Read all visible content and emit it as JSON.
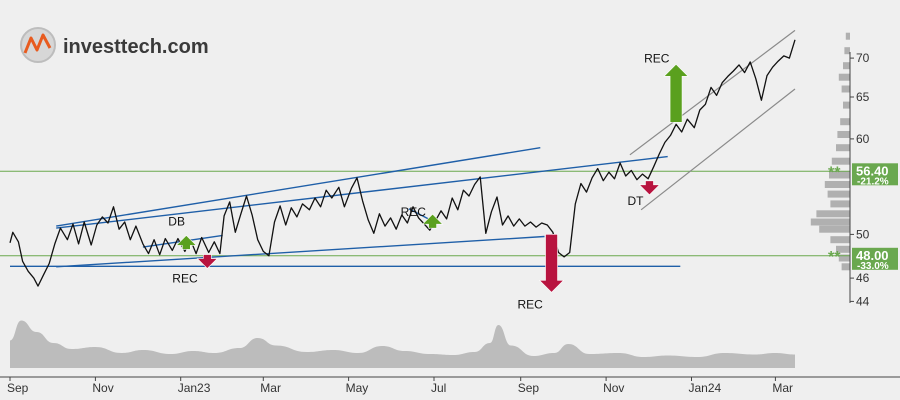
{
  "brand": {
    "name": "investtech.com"
  },
  "colors": {
    "background": "#efefef",
    "price_line": "#111111",
    "trend_line": "#1f5fa8",
    "channel_line": "#8a8a8a",
    "volume_fill": "#bcbcbc",
    "buy_arrow": "#5aa01e",
    "sell_arrow": "#b8133f",
    "support_green": "#6aa84f",
    "level_tag_bg": "#6aa84f"
  },
  "chart_data": {
    "type": "line",
    "y_axis": {
      "scale": "log",
      "range": [
        41.5,
        75
      ],
      "ticks": [
        44,
        46,
        50,
        60,
        65,
        70
      ]
    },
    "x_axis": {
      "range": [
        "2022-09-01",
        "2024-03-15"
      ],
      "ticks": [
        {
          "date": "2022-09-01",
          "label": "Sep"
        },
        {
          "date": "2022-11-01",
          "label": "Nov"
        },
        {
          "date": "2023-01-01",
          "label": "Jan23"
        },
        {
          "date": "2023-03-01",
          "label": "Mar"
        },
        {
          "date": "2023-05-01",
          "label": "May"
        },
        {
          "date": "2023-07-01",
          "label": "Jul"
        },
        {
          "date": "2023-09-01",
          "label": "Sep"
        },
        {
          "date": "2023-11-01",
          "label": "Nov"
        },
        {
          "date": "2024-01-01",
          "label": "Jan24"
        },
        {
          "date": "2024-03-01",
          "label": "Mar"
        }
      ]
    },
    "price": [
      [
        "2022-09-01",
        49.2
      ],
      [
        "2022-09-03",
        50.2
      ],
      [
        "2022-09-07",
        49.3
      ],
      [
        "2022-09-10",
        47.5
      ],
      [
        "2022-09-14",
        46.6
      ],
      [
        "2022-09-18",
        46.0
      ],
      [
        "2022-09-21",
        45.3
      ],
      [
        "2022-09-25",
        46.3
      ],
      [
        "2022-09-29",
        47.3
      ],
      [
        "2022-10-03",
        49.1
      ],
      [
        "2022-10-07",
        50.6
      ],
      [
        "2022-10-12",
        49.5
      ],
      [
        "2022-10-16",
        51.0
      ],
      [
        "2022-10-20",
        49.1
      ],
      [
        "2022-10-24",
        51.2
      ],
      [
        "2022-10-29",
        49.0
      ],
      [
        "2022-11-02",
        50.9
      ],
      [
        "2022-11-06",
        51.7
      ],
      [
        "2022-11-10",
        51.1
      ],
      [
        "2022-11-14",
        52.7
      ],
      [
        "2022-11-18",
        50.5
      ],
      [
        "2022-11-22",
        51.2
      ],
      [
        "2022-11-26",
        49.5
      ],
      [
        "2022-11-30",
        50.8
      ],
      [
        "2022-12-05",
        49.1
      ],
      [
        "2022-12-09",
        48.2
      ],
      [
        "2022-12-13",
        49.5
      ],
      [
        "2022-12-17",
        48.1
      ],
      [
        "2022-12-21",
        49.6
      ],
      [
        "2022-12-26",
        48.5
      ],
      [
        "2022-12-30",
        49.6
      ],
      [
        "2023-01-04",
        48.4
      ],
      [
        "2023-01-08",
        49.5
      ],
      [
        "2023-01-12",
        48.2
      ],
      [
        "2023-01-16",
        49.7
      ],
      [
        "2023-01-21",
        48.3
      ],
      [
        "2023-01-25",
        49.3
      ],
      [
        "2023-01-29",
        48.2
      ],
      [
        "2023-02-01",
        51.8
      ],
      [
        "2023-02-05",
        53.2
      ],
      [
        "2023-02-09",
        50.2
      ],
      [
        "2023-02-13",
        52.0
      ],
      [
        "2023-02-17",
        53.8
      ],
      [
        "2023-02-21",
        51.9
      ],
      [
        "2023-02-25",
        49.5
      ],
      [
        "2023-03-01",
        48.4
      ],
      [
        "2023-03-05",
        48.0
      ],
      [
        "2023-03-09",
        51.2
      ],
      [
        "2023-03-13",
        52.8
      ],
      [
        "2023-03-17",
        50.9
      ],
      [
        "2023-03-21",
        52.6
      ],
      [
        "2023-03-25",
        51.7
      ],
      [
        "2023-03-29",
        53.0
      ],
      [
        "2023-04-03",
        52.4
      ],
      [
        "2023-04-07",
        53.6
      ],
      [
        "2023-04-11",
        52.7
      ],
      [
        "2023-04-15",
        54.4
      ],
      [
        "2023-04-19",
        53.6
      ],
      [
        "2023-04-24",
        54.7
      ],
      [
        "2023-04-28",
        52.7
      ],
      [
        "2023-05-03",
        54.6
      ],
      [
        "2023-05-07",
        55.7
      ],
      [
        "2023-05-11",
        53.3
      ],
      [
        "2023-05-15",
        51.4
      ],
      [
        "2023-05-19",
        50.1
      ],
      [
        "2023-05-23",
        52.0
      ],
      [
        "2023-05-27",
        50.8
      ],
      [
        "2023-05-31",
        51.6
      ],
      [
        "2023-06-04",
        50.5
      ],
      [
        "2023-06-08",
        51.9
      ],
      [
        "2023-06-12",
        51.1
      ],
      [
        "2023-06-16",
        52.7
      ],
      [
        "2023-06-20",
        51.6
      ],
      [
        "2023-06-24",
        51.0
      ],
      [
        "2023-06-28",
        50.4
      ],
      [
        "2023-07-02",
        51.3
      ],
      [
        "2023-07-06",
        52.3
      ],
      [
        "2023-07-10",
        51.5
      ],
      [
        "2023-07-14",
        53.6
      ],
      [
        "2023-07-18",
        52.4
      ],
      [
        "2023-07-22",
        54.4
      ],
      [
        "2023-07-26",
        53.8
      ],
      [
        "2023-07-30",
        55.0
      ],
      [
        "2023-08-03",
        55.8
      ],
      [
        "2023-08-07",
        50.1
      ],
      [
        "2023-08-11",
        52.2
      ],
      [
        "2023-08-15",
        53.7
      ],
      [
        "2023-08-19",
        50.9
      ],
      [
        "2023-08-23",
        51.8
      ],
      [
        "2023-08-27",
        50.8
      ],
      [
        "2023-08-31",
        51.5
      ],
      [
        "2023-09-04",
        50.8
      ],
      [
        "2023-09-08",
        51.2
      ],
      [
        "2023-09-12",
        50.7
      ],
      [
        "2023-09-16",
        51.1
      ],
      [
        "2023-09-20",
        50.9
      ],
      [
        "2023-09-24",
        50.2
      ],
      [
        "2023-09-28",
        48.3
      ],
      [
        "2023-10-02",
        47.9
      ],
      [
        "2023-10-06",
        48.3
      ],
      [
        "2023-10-10",
        53.0
      ],
      [
        "2023-10-14",
        55.1
      ],
      [
        "2023-10-18",
        54.2
      ],
      [
        "2023-10-22",
        55.7
      ],
      [
        "2023-10-26",
        56.7
      ],
      [
        "2023-10-30",
        55.4
      ],
      [
        "2023-11-03",
        56.3
      ],
      [
        "2023-11-07",
        55.6
      ],
      [
        "2023-11-11",
        57.3
      ],
      [
        "2023-11-15",
        55.9
      ],
      [
        "2023-11-19",
        56.5
      ],
      [
        "2023-11-23",
        55.5
      ],
      [
        "2023-11-27",
        56.1
      ],
      [
        "2023-12-01",
        55.6
      ],
      [
        "2023-12-05",
        56.9
      ],
      [
        "2023-12-09",
        58.3
      ],
      [
        "2023-12-13",
        59.6
      ],
      [
        "2023-12-17",
        60.4
      ],
      [
        "2023-12-21",
        61.7
      ],
      [
        "2023-12-25",
        60.8
      ],
      [
        "2023-12-29",
        62.3
      ],
      [
        "2024-01-03",
        61.3
      ],
      [
        "2024-01-07",
        63.4
      ],
      [
        "2024-01-11",
        64.1
      ],
      [
        "2024-01-15",
        66.2
      ],
      [
        "2024-01-19",
        65.2
      ],
      [
        "2024-01-23",
        66.8
      ],
      [
        "2024-01-27",
        67.6
      ],
      [
        "2024-01-31",
        68.3
      ],
      [
        "2024-02-04",
        69.1
      ],
      [
        "2024-02-08",
        68.1
      ],
      [
        "2024-02-12",
        69.5
      ],
      [
        "2024-02-16",
        67.3
      ],
      [
        "2024-02-20",
        64.6
      ],
      [
        "2024-02-24",
        67.7
      ],
      [
        "2024-02-28",
        68.8
      ],
      [
        "2024-03-03",
        69.6
      ],
      [
        "2024-03-07",
        70.3
      ],
      [
        "2024-03-11",
        70.0
      ],
      [
        "2024-03-15",
        72.5
      ]
    ],
    "trend_lines": [
      {
        "kind": "trend",
        "from": [
          "2022-10-04",
          50.8
        ],
        "to": [
          "2023-09-15",
          59.0
        ]
      },
      {
        "kind": "trend",
        "from": [
          "2022-10-04",
          50.6
        ],
        "to": [
          "2023-12-15",
          58.0
        ]
      },
      {
        "kind": "trend",
        "from": [
          "2022-10-04",
          47.0
        ],
        "to": [
          "2023-09-18",
          49.8
        ]
      },
      {
        "kind": "trend",
        "from": [
          "2022-09-01",
          47.05
        ],
        "to": [
          "2023-12-24",
          47.05
        ]
      },
      {
        "kind": "trend",
        "from": [
          "2022-12-05",
          48.8
        ],
        "to": [
          "2023-01-31",
          49.9
        ]
      },
      {
        "kind": "trend",
        "from": [
          "2023-06-13",
          52.5
        ],
        "to": [
          "2023-07-04",
          51.0
        ]
      },
      {
        "kind": "channel",
        "from": [
          "2023-11-26",
          52.4
        ],
        "to": [
          "2024-03-15",
          66.0
        ]
      },
      {
        "kind": "channel",
        "from": [
          "2023-11-18",
          58.2
        ],
        "to": [
          "2024-03-15",
          73.8
        ]
      }
    ],
    "levels": [
      {
        "value": 56.4,
        "label": "56.40",
        "pct": "-21.2%"
      },
      {
        "value": 48.0,
        "label": "48.00",
        "pct": "-33.0%"
      }
    ],
    "signals": [
      {
        "label": "DB",
        "direction": "buy",
        "date": "2023-01-05"
      },
      {
        "label": "REC",
        "direction": "sell",
        "date": "2023-01-20"
      },
      {
        "label": "REC",
        "direction": "buy",
        "date": "2023-06-30"
      },
      {
        "label": "REC",
        "direction": "sell",
        "date": "2023-09-23"
      },
      {
        "label": "DT",
        "direction": "sell",
        "date": "2023-12-02"
      },
      {
        "label": "REC",
        "direction": "buy",
        "date": "2023-12-21"
      }
    ],
    "volume": [
      [
        "2022-09-01",
        0.55
      ],
      [
        "2022-09-09",
        0.95
      ],
      [
        "2022-09-20",
        0.72
      ],
      [
        "2022-10-02",
        0.5
      ],
      [
        "2022-10-15",
        0.38
      ],
      [
        "2022-11-01",
        0.42
      ],
      [
        "2022-11-20",
        0.3
      ],
      [
        "2022-12-05",
        0.36
      ],
      [
        "2022-12-25",
        0.28
      ],
      [
        "2023-01-10",
        0.34
      ],
      [
        "2023-01-25",
        0.3
      ],
      [
        "2023-02-12",
        0.4
      ],
      [
        "2023-02-25",
        0.6
      ],
      [
        "2023-03-10",
        0.45
      ],
      [
        "2023-04-01",
        0.32
      ],
      [
        "2023-04-20",
        0.36
      ],
      [
        "2023-05-08",
        0.3
      ],
      [
        "2023-05-25",
        0.44
      ],
      [
        "2023-06-10",
        0.34
      ],
      [
        "2023-06-28",
        0.28
      ],
      [
        "2023-07-15",
        0.26
      ],
      [
        "2023-07-30",
        0.32
      ],
      [
        "2023-08-10",
        0.5
      ],
      [
        "2023-08-16",
        0.86
      ],
      [
        "2023-08-25",
        0.45
      ],
      [
        "2023-09-10",
        0.24
      ],
      [
        "2023-09-25",
        0.3
      ],
      [
        "2023-10-05",
        0.48
      ],
      [
        "2023-10-20",
        0.28
      ],
      [
        "2023-11-10",
        0.3
      ],
      [
        "2023-11-28",
        0.22
      ],
      [
        "2023-12-15",
        0.25
      ],
      [
        "2024-01-05",
        0.22
      ],
      [
        "2024-01-25",
        0.3
      ],
      [
        "2024-02-15",
        0.27
      ],
      [
        "2024-03-01",
        0.3
      ],
      [
        "2024-03-15",
        0.27
      ]
    ],
    "volume_profile": [
      [
        73,
        0.3
      ],
      [
        71,
        0.4
      ],
      [
        69,
        0.5
      ],
      [
        67.5,
        0.8
      ],
      [
        66,
        0.6
      ],
      [
        64,
        0.5
      ],
      [
        62,
        0.7
      ],
      [
        60.5,
        0.9
      ],
      [
        59,
        1.0
      ],
      [
        57.5,
        1.3
      ],
      [
        56,
        1.5
      ],
      [
        55,
        1.8
      ],
      [
        54,
        1.6
      ],
      [
        53,
        1.4
      ],
      [
        52,
        2.4
      ],
      [
        51.2,
        2.8
      ],
      [
        50.5,
        2.2
      ],
      [
        49.5,
        1.4
      ],
      [
        48.6,
        1.0
      ],
      [
        47.8,
        0.8
      ],
      [
        47,
        0.6
      ]
    ]
  }
}
